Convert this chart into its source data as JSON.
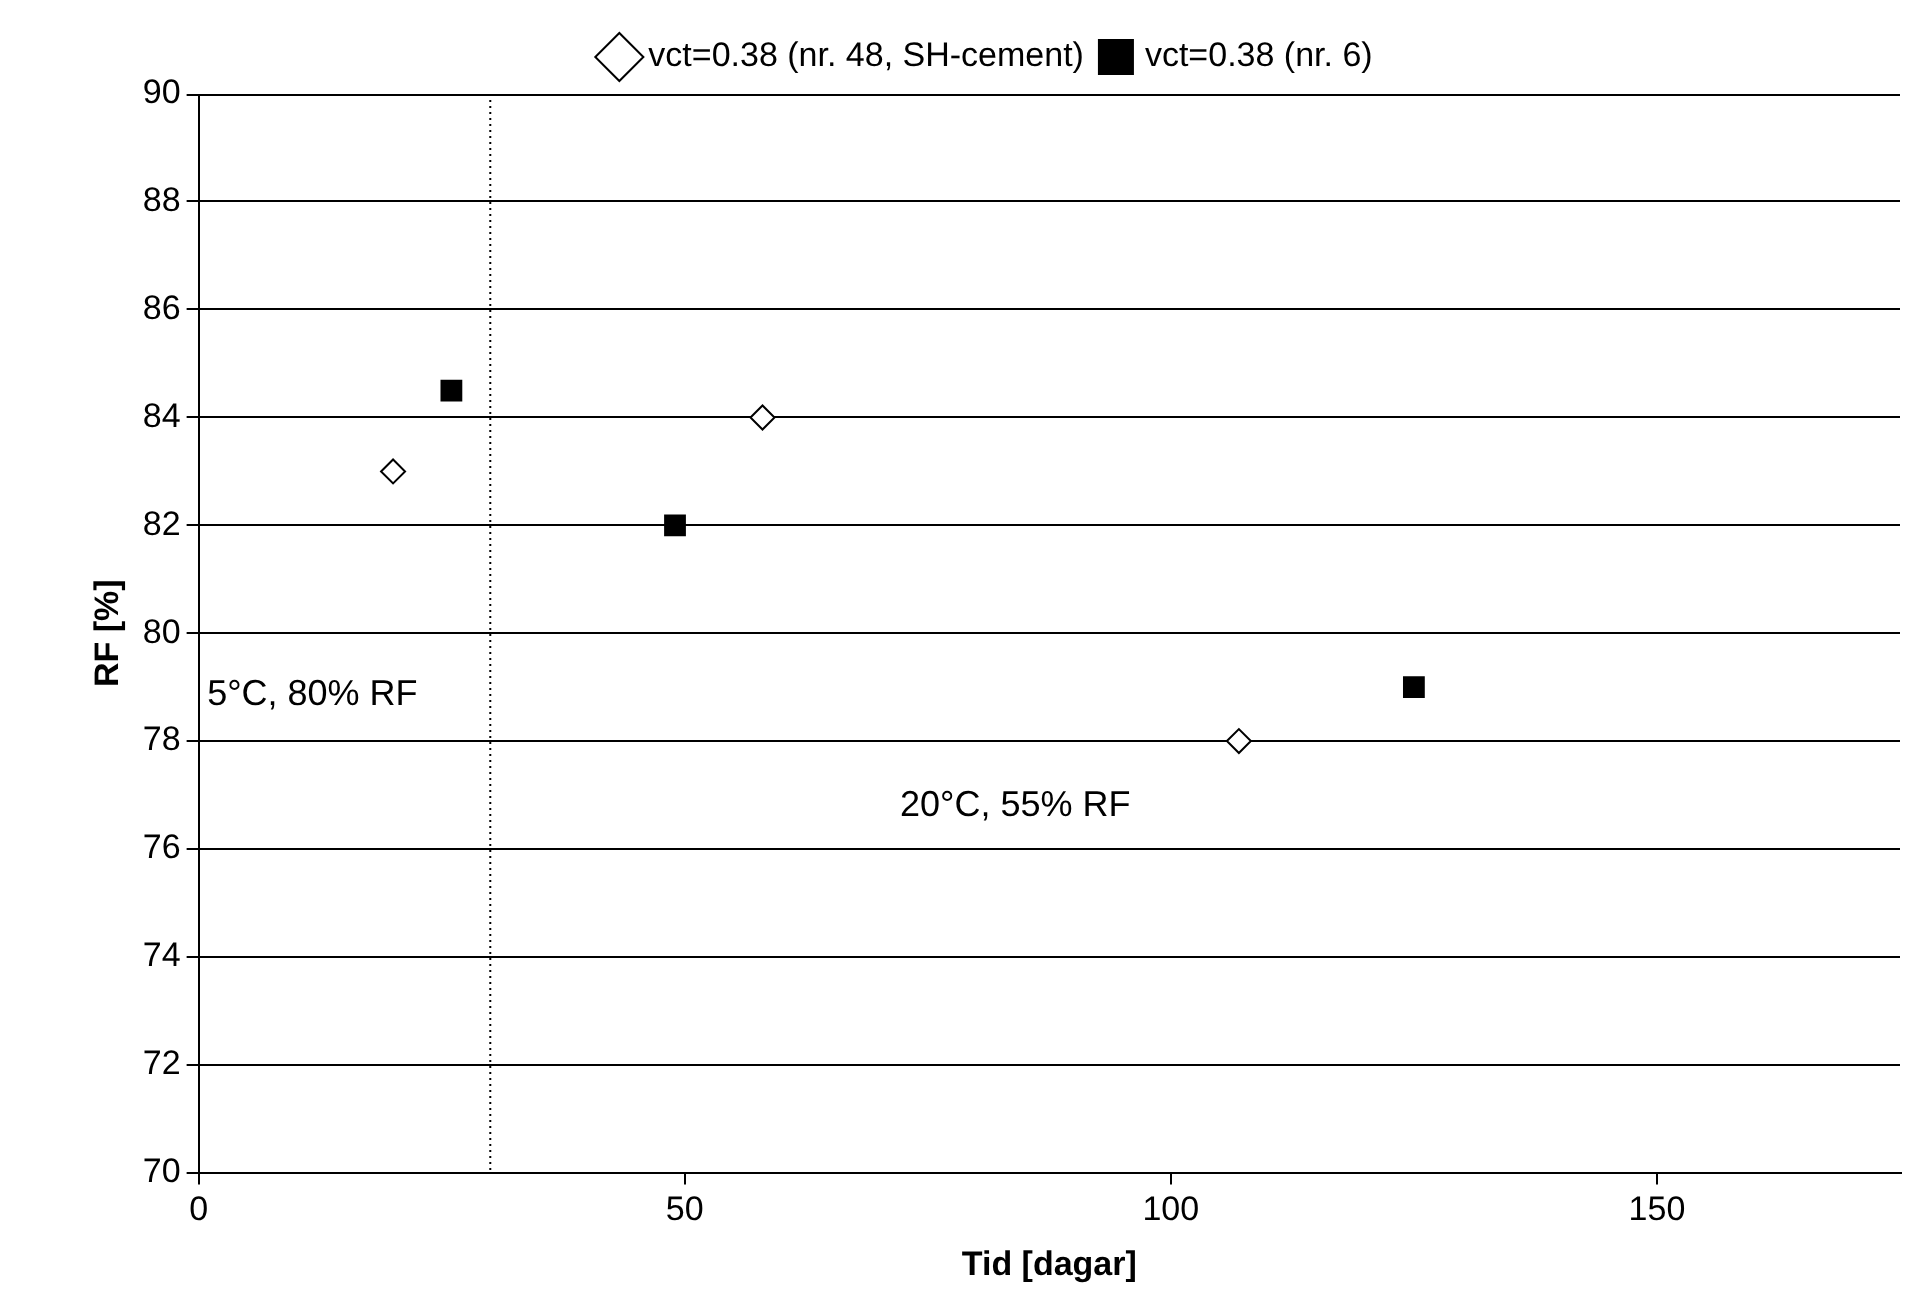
{
  "chart_data": {
    "type": "scatter",
    "xlabel": "Tid [dagar]",
    "ylabel": "RF [%]",
    "xlim": [
      0,
      175
    ],
    "xticks": [
      0,
      50,
      100,
      150
    ],
    "ylim": [
      70,
      90
    ],
    "yticks": [
      70,
      72,
      74,
      76,
      78,
      80,
      82,
      84,
      86,
      88,
      90
    ],
    "grid": "y",
    "legend": "top",
    "series": [
      {
        "name": "vct=0.38 (nr. 48, SH-cement)",
        "color": "#000000",
        "marker": "diamond",
        "x": [
          20,
          58,
          107
        ],
        "values": [
          83,
          84,
          78
        ]
      },
      {
        "name": "vct=0.38 (nr. 6)",
        "color": "#000000",
        "marker": "square",
        "x": [
          26,
          49,
          125
        ],
        "values": [
          84.5,
          82,
          79
        ]
      }
    ],
    "ref_lines": [
      {
        "axis": "x",
        "value": 30,
        "line_style": "dotted",
        "color": "#000000"
      }
    ],
    "annotations": [
      "5°C, 80% RF",
      "20°C, 55% RF"
    ]
  }
}
